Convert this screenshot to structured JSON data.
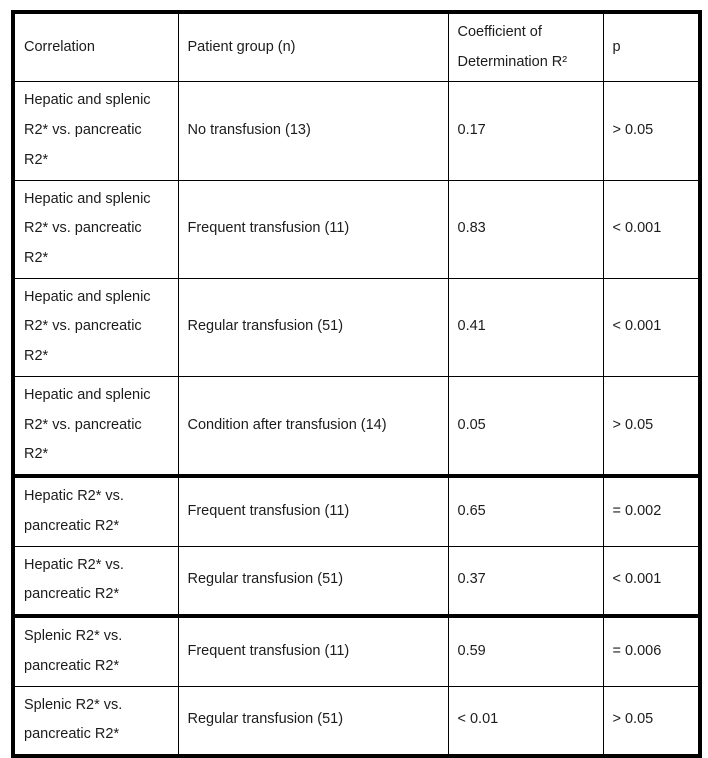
{
  "table": {
    "columns": [
      "Correlation",
      "Patient group (n)",
      "Coefficient of Determination R²",
      "p"
    ],
    "rows": [
      {
        "correlation": "Hepatic and splenic R2* vs. pancreatic R2*",
        "group": "No transfusion (13)",
        "r2": "0.17",
        "p": "> 0.05"
      },
      {
        "correlation": "Hepatic and splenic R2* vs. pancreatic R2*",
        "group": "Frequent transfusion (11)",
        "r2": "0.83",
        "p": "< 0.001"
      },
      {
        "correlation": "Hepatic and splenic R2* vs. pancreatic R2*",
        "group": "Regular transfusion (51)",
        "r2": "0.41",
        "p": "< 0.001"
      },
      {
        "correlation": "Hepatic and splenic R2* vs. pancreatic R2*",
        "group": "Condition after transfusion (14)",
        "r2": "0.05",
        "p": "> 0.05"
      },
      {
        "correlation": "Hepatic R2* vs. pancreatic R2*",
        "group": "Frequent transfusion (11)",
        "r2": "0.65",
        "p": "= 0.002"
      },
      {
        "correlation": "Hepatic R2* vs. pancreatic R2*",
        "group": "Regular transfusion (51)",
        "r2": "0.37",
        "p": "< 0.001"
      },
      {
        "correlation": "Splenic R2* vs. pancreatic R2*",
        "group": "Frequent transfusion (11)",
        "r2": "0.59",
        "p": "= 0.006"
      },
      {
        "correlation": "Splenic R2* vs. pancreatic R2*",
        "group": "Regular transfusion (51)",
        "r2": "< 0.01",
        "p": "> 0.05"
      }
    ],
    "border_color": "#000000",
    "section_start_row_indexes": [
      4,
      6
    ]
  }
}
